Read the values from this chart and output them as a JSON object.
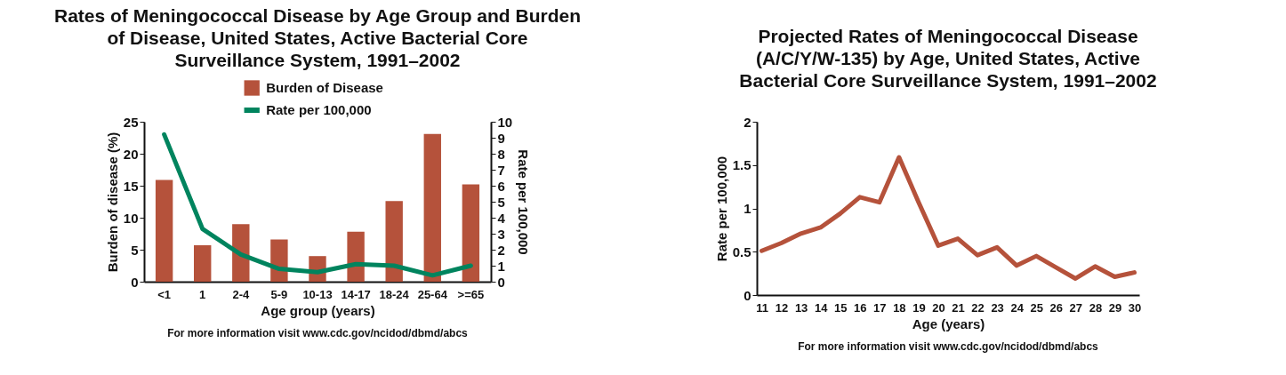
{
  "chart_data": [
    {
      "type": "bar",
      "title": "Rates of Meningococcal Disease by Age Group and Burden of Disease, United States, Active Bacterial Core Surveillance System, 1991–2002",
      "xlabel": "Age group (years)",
      "ylabel": "Burden of disease (%)",
      "y2label": "Rate per 100,000",
      "categories": [
        "<1",
        "1",
        "2-4",
        "5-9",
        "10-13",
        "14-17",
        "18-24",
        "25-64",
        ">=65"
      ],
      "series": [
        {
          "name": "Burden of Disease",
          "type": "bar",
          "color": "#b5523b",
          "values": [
            15.9,
            5.7,
            9.0,
            6.6,
            4.0,
            7.8,
            12.6,
            23.1,
            15.2
          ]
        },
        {
          "name": "Rate per 100,000",
          "type": "line",
          "axis": "y2",
          "color": "#00845e",
          "values": [
            9.2,
            3.3,
            1.7,
            0.8,
            0.6,
            1.1,
            1.0,
            0.4,
            1.0
          ]
        }
      ],
      "ylim": [
        0,
        25
      ],
      "yticks": [
        0,
        5,
        10,
        15,
        20,
        25
      ],
      "y2lim": [
        0,
        10
      ],
      "y2ticks": [
        0,
        1,
        2,
        3,
        4,
        5,
        6,
        7,
        8,
        9,
        10
      ],
      "legend": "top",
      "annotations": [
        "For more information visit www.cdc.gov/ncidod/dbmd/abcs"
      ]
    },
    {
      "type": "line",
      "title": "Projected Rates of Meningococcal Disease (A/C/Y/W-135) by Age, United States, Active Bacterial Core Surveillance System, 1991–2002",
      "xlabel": "Age (years)",
      "ylabel": "Rate per 100,000",
      "categories": [
        "11",
        "12",
        "13",
        "14",
        "15",
        "16",
        "17",
        "18",
        "19",
        "20",
        "21",
        "22",
        "23",
        "24",
        "25",
        "26",
        "27",
        "28",
        "29",
        "30"
      ],
      "series": [
        {
          "color": "#b5523b",
          "values": [
            0.51,
            0.6,
            0.71,
            0.78,
            0.94,
            1.13,
            1.07,
            1.59,
            1.07,
            0.57,
            0.65,
            0.46,
            0.55,
            0.34,
            0.45,
            0.32,
            0.19,
            0.33,
            0.21,
            0.26
          ]
        }
      ],
      "ylim": [
        0,
        2
      ],
      "yticks": [
        0,
        0.5,
        1,
        1.5,
        2
      ],
      "annotations": [
        "For more information visit www.cdc.gov/ncidod/dbmd/abcs"
      ]
    }
  ]
}
